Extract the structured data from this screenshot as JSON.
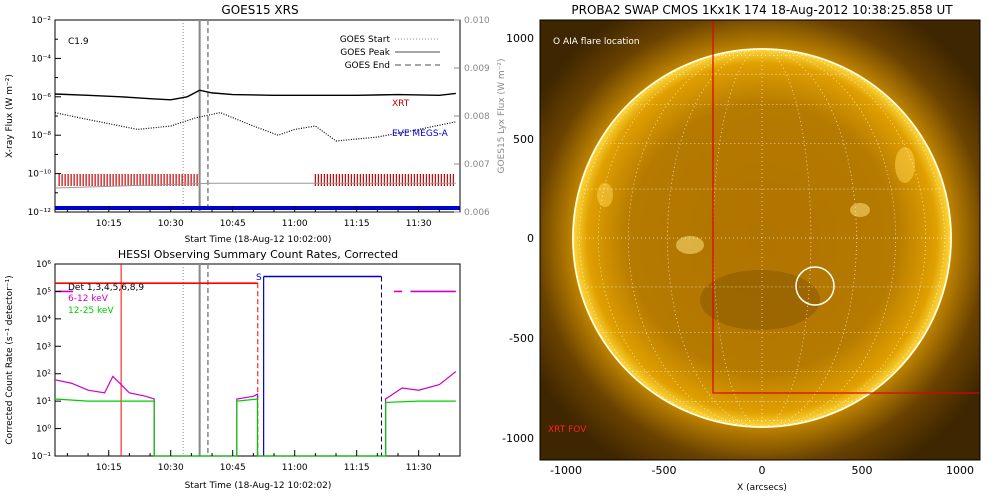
{
  "goes_panel": {
    "title": "GOES15 XRS",
    "flare_class": "C1.9",
    "ylabel_left": "X-ray Flux (W m⁻²)",
    "ylabel_right": "GOES15 Lyx Flux (W m⁻²)",
    "xlabel": "Start Time (18-Aug-12 10:02:00)",
    "legend": [
      "GOES Start",
      "GOES Peak",
      "GOES End"
    ],
    "tag_xrt": "XRT",
    "tag_eve": "EVE MEGS-A",
    "colors": {
      "xrt": "#cc0000",
      "eve": "#0000cc",
      "low": "#000000",
      "high": "#000000",
      "lyx": "#999999"
    }
  },
  "hessi_panel": {
    "title": "HESSI Observing Summary Count Rates, Corrected",
    "ylabel": "Corrected Count Rate (s⁻¹ detector⁻¹)",
    "xlabel": "Start Time (18-Aug-12 10:02:02)",
    "legend": [
      "Det 1,3,4,5,6,8,9",
      "6-12 keV",
      "12-25 keV"
    ],
    "saa_tag": "S",
    "colors": {
      "band1": "#cc00cc",
      "band2": "#00cc00",
      "night": "#ff0000",
      "saa": "#0000cc"
    }
  },
  "swap_panel": {
    "title": "PROBA2 SWAP CMOS 1Kx1K 174 18-Aug-2012 10:38:25.858 UT",
    "aia_label": "O AIA flare location",
    "xrt_fov_label": "XRT FOV",
    "xlabel": "X (arcsecs)",
    "xticks": [
      "-1000",
      "-500",
      "0",
      "500",
      "1000"
    ],
    "yticks": [
      "1000",
      "500",
      "0",
      "-500",
      "-1000"
    ]
  },
  "chart_data": [
    {
      "type": "line",
      "title": "GOES15 XRS",
      "xlabel": "Start Time (18-Aug-12 10:02:00)",
      "ylabel": "X-ray Flux (W m⁻²)",
      "y2label": "GOES15 Lyx Flux (W m⁻²)",
      "yscale": "log",
      "xlim": [
        "10:02",
        "11:40"
      ],
      "ylim": [
        1e-12,
        0.01
      ],
      "y2lim": [
        0.006,
        0.01
      ],
      "xticks": [
        "10:15",
        "10:30",
        "10:45",
        "11:00",
        "11:15",
        "11:30"
      ],
      "yticks": [
        "10⁻¹²",
        "10⁻¹⁰",
        "10⁻⁸",
        "10⁻⁶",
        "10⁻⁴",
        "10⁻²"
      ],
      "y2ticks": [
        "0.006",
        "0.007",
        "0.008",
        "0.009",
        "0.010"
      ],
      "events": {
        "start": "10:33",
        "peak": "10:37",
        "end": "10:39"
      },
      "series": [
        {
          "name": "high",
          "x": [
            "10:02",
            "10:10",
            "10:18",
            "10:25",
            "10:30",
            "10:34",
            "10:37",
            "10:40",
            "10:45",
            "10:55",
            "11:05",
            "11:15",
            "11:25",
            "11:35",
            "11:39"
          ],
          "values": [
            1.4e-06,
            1.2e-06,
            1e-06,
            8e-07,
            7e-07,
            1e-06,
            2.2e-06,
            1.6e-06,
            1.3e-06,
            1.2e-06,
            1.2e-06,
            1.2e-06,
            1.3e-06,
            1.2e-06,
            1.5e-06
          ]
        },
        {
          "name": "low",
          "x": [
            "10:02",
            "10:08",
            "10:15",
            "10:22",
            "10:30",
            "10:36",
            "10:42",
            "10:50",
            "10:56",
            "11:00",
            "11:05",
            "11:10",
            "11:20",
            "11:30",
            "11:39"
          ],
          "values": [
            1.5e-07,
            8e-08,
            4e-08,
            2e-08,
            3e-08,
            8e-08,
            1.5e-07,
            3e-08,
            1e-08,
            2e-08,
            3e-08,
            5e-09,
            8e-09,
            2e-08,
            5e-08
          ]
        },
        {
          "name": "lyx",
          "x": [
            "10:02",
            "10:40",
            "11:39"
          ],
          "values": [
            0.0065,
            0.0066,
            0.0066
          ]
        }
      ],
      "coverage": {
        "xrt": [
          [
            "10:03",
            "10:37"
          ],
          [
            "11:05",
            "11:39"
          ]
        ],
        "eve": [
          [
            "10:02",
            "11:40"
          ]
        ]
      }
    },
    {
      "type": "line",
      "title": "HESSI Observing Summary Count Rates, Corrected",
      "xlabel": "Start Time (18-Aug-12 10:02:02)",
      "ylabel": "Corrected Count Rate (s⁻¹ detector⁻¹)",
      "yscale": "log",
      "xlim": [
        "10:02",
        "11:40"
      ],
      "ylim": [
        0.1,
        1000000.0
      ],
      "xticks": [
        "10:15",
        "10:30",
        "10:45",
        "11:00",
        "11:15",
        "11:30"
      ],
      "yticks": [
        "10⁻¹",
        "10⁰",
        "10¹",
        "10²",
        "10³",
        "10⁴",
        "10⁵",
        "10⁶"
      ],
      "series": [
        {
          "name": "6-12 keV",
          "x": [
            "10:02",
            "10:06",
            "10:10",
            "10:14",
            "10:16",
            "10:20",
            "10:24",
            "10:26",
            "10:26",
            "10:46",
            "10:46",
            "10:50",
            "10:51",
            "10:51",
            "11:22",
            "11:22",
            "11:26",
            "11:30",
            "11:35",
            "11:39"
          ],
          "values": [
            60,
            45,
            25,
            20,
            80,
            20,
            15,
            12,
            0.1,
            0.1,
            12,
            15,
            18,
            0.1,
            0.1,
            12,
            30,
            25,
            40,
            120
          ]
        },
        {
          "name": "12-25 keV",
          "x": [
            "10:02",
            "10:10",
            "10:20",
            "10:26",
            "10:26",
            "10:46",
            "10:46",
            "10:51",
            "10:51",
            "11:22",
            "11:22",
            "11:30",
            "11:39"
          ],
          "values": [
            12,
            10,
            10,
            10,
            0.1,
            0.1,
            10,
            12,
            0.1,
            0.1,
            9,
            10,
            10
          ]
        }
      ],
      "night_x": [
        "10:02",
        "10:53"
      ],
      "saa_x": [
        "10:52",
        "11:21"
      ]
    }
  ]
}
